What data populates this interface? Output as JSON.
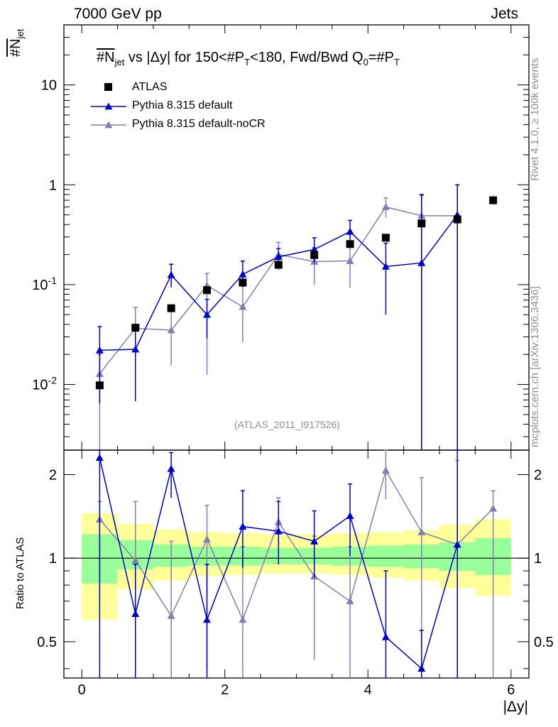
{
  "header": {
    "energy_label": "7000 GeV pp",
    "category_label": "Jets"
  },
  "side": {
    "rivet_text": "Rivet 4.1.0, ≥ 100k events",
    "mcplots_text": "mcplots.cern.ch [arXiv:1306.3436]"
  },
  "analysis_id": "(ATLAS_2011_I917526)",
  "chart_data": {
    "type": "scatter",
    "title": "#N̅jet vs |Δy| for 150<#P̅T<180, Fwd/Bwd Q0=#P̅T",
    "title_parts": {
      "t1": "#N",
      "t1sub": "jet",
      "t2": " vs |Δy|  for 150<#P",
      "t2sub": "T",
      "t3": "<180, Fwd/Bwd Q",
      "t3sub": "0",
      "t4": "=#P",
      "t4sub": "T"
    },
    "ylabel": "#N̅jet",
    "ylabel_parts": {
      "main": "#N",
      "sub": "jet"
    },
    "xlabel": "|Δy|",
    "ratio_ylabel": "Ratio to ATLAS",
    "xlim": [
      -0.25,
      6.25
    ],
    "ylim": [
      0.0022,
      40
    ],
    "yscale": "log",
    "ratio_ylim": [
      0.37,
      2.45
    ],
    "x_ticks": [
      "0",
      "2",
      "4",
      "6"
    ],
    "y_ticks_main": [
      "10",
      "1"
    ],
    "y_ticks_main_pow": [
      "10^-1",
      "10^-2"
    ],
    "ratio_ticks": [
      "2",
      "1",
      "0.5"
    ],
    "bands": {
      "edges": [
        0,
        0.5,
        1.0,
        1.5,
        2.0,
        2.5,
        3.0,
        3.5,
        4.0,
        4.5,
        5.0,
        5.5,
        6.0
      ],
      "inner_lo": [
        0.81,
        0.91,
        0.93,
        0.94,
        0.94,
        0.95,
        0.95,
        0.94,
        0.93,
        0.92,
        0.9,
        0.87
      ],
      "inner_hi": [
        1.22,
        1.16,
        1.12,
        1.1,
        1.1,
        1.09,
        1.09,
        1.1,
        1.11,
        1.12,
        1.14,
        1.18
      ],
      "outer_lo": [
        0.6,
        0.77,
        0.83,
        0.86,
        0.87,
        0.88,
        0.88,
        0.87,
        0.85,
        0.83,
        0.78,
        0.73
      ],
      "outer_hi": [
        1.45,
        1.33,
        1.27,
        1.24,
        1.23,
        1.22,
        1.22,
        1.23,
        1.24,
        1.26,
        1.32,
        1.38
      ]
    },
    "series": [
      {
        "name": "ATLAS",
        "color": "#000000",
        "marker": "square",
        "x": [
          0.25,
          0.75,
          1.25,
          1.75,
          2.25,
          2.75,
          3.25,
          3.75,
          4.25,
          4.75,
          5.25,
          5.75
        ],
        "values": [
          0.0098,
          0.037,
          0.058,
          0.088,
          0.105,
          0.158,
          0.198,
          0.255,
          0.295,
          0.41,
          0.45,
          0.7
        ]
      },
      {
        "name": "Pythia 8.315 default",
        "color": "#0000cc",
        "marker": "triangle",
        "x": [
          0.25,
          0.75,
          1.25,
          1.75,
          2.25,
          2.75,
          3.25,
          3.75,
          4.25,
          4.75,
          5.25
        ],
        "values": [
          0.022,
          0.0225,
          0.125,
          0.05,
          0.127,
          0.19,
          0.225,
          0.34,
          0.152,
          0.165,
          0.5
        ],
        "err_lo": [
          0.0065,
          0.0068,
          0.094,
          0.029,
          0.095,
          0.148,
          0.166,
          0.255,
          0.05,
          0.0001,
          0.0001
        ],
        "err_hi": [
          0.038,
          0.038,
          0.16,
          0.071,
          0.172,
          0.23,
          0.295,
          0.44,
          0.26,
          0.8,
          1.0
        ],
        "ratio": [
          2.3,
          0.63,
          2.1,
          0.6,
          1.3,
          1.25,
          1.15,
          1.42,
          0.52,
          0.4,
          1.12
        ],
        "ratio_lo": [
          0.3,
          0.3,
          1.65,
          0.3,
          0.92,
          0.95,
          0.85,
          1.02,
          0.3,
          0.3,
          0.3
        ],
        "ratio_hi": [
          2.45,
          0.95,
          2.4,
          0.95,
          1.75,
          1.6,
          1.48,
          1.85,
          0.9,
          0.55,
          2.45
        ]
      },
      {
        "name": "Pythia 8.315 default-noCR",
        "color": "#8080b0",
        "marker": "triangle",
        "x": [
          0.25,
          0.75,
          1.25,
          1.75,
          2.25,
          2.75,
          3.25,
          3.75,
          4.25,
          4.75,
          5.25
        ],
        "values": [
          0.0128,
          0.0365,
          0.035,
          0.098,
          0.06,
          0.2,
          0.17,
          0.173,
          0.6,
          0.49,
          0.49
        ],
        "err_lo": [
          0.0001,
          0.016,
          0.0155,
          0.0125,
          0.0265,
          0.14,
          0.1,
          0.093,
          0.47,
          0.0001,
          0.0001
        ],
        "err_hi": [
          0.02,
          0.059,
          0.059,
          0.13,
          0.096,
          0.265,
          0.235,
          0.25,
          0.74,
          0.78,
          1.0
        ],
        "ratio": [
          1.38,
          0.98,
          0.62,
          1.17,
          0.6,
          1.35,
          0.86,
          0.7,
          2.07,
          1.24,
          1.12,
          1.51
        ],
        "ratio_x": [
          0.25,
          0.75,
          1.25,
          1.75,
          2.25,
          2.75,
          3.25,
          3.75,
          4.25,
          4.75,
          5.25,
          5.75
        ],
        "ratio_lo": [
          0.7,
          0.36,
          0.3,
          0.4,
          0.3,
          1.05,
          0.43,
          0.3,
          1.63,
          0.5,
          0.3,
          0.3
        ],
        "ratio_hi": [
          1.6,
          1.6,
          1.15,
          1.55,
          1.1,
          1.65,
          1.2,
          1.1,
          2.45,
          1.95,
          2.25,
          1.75
        ]
      }
    ]
  }
}
